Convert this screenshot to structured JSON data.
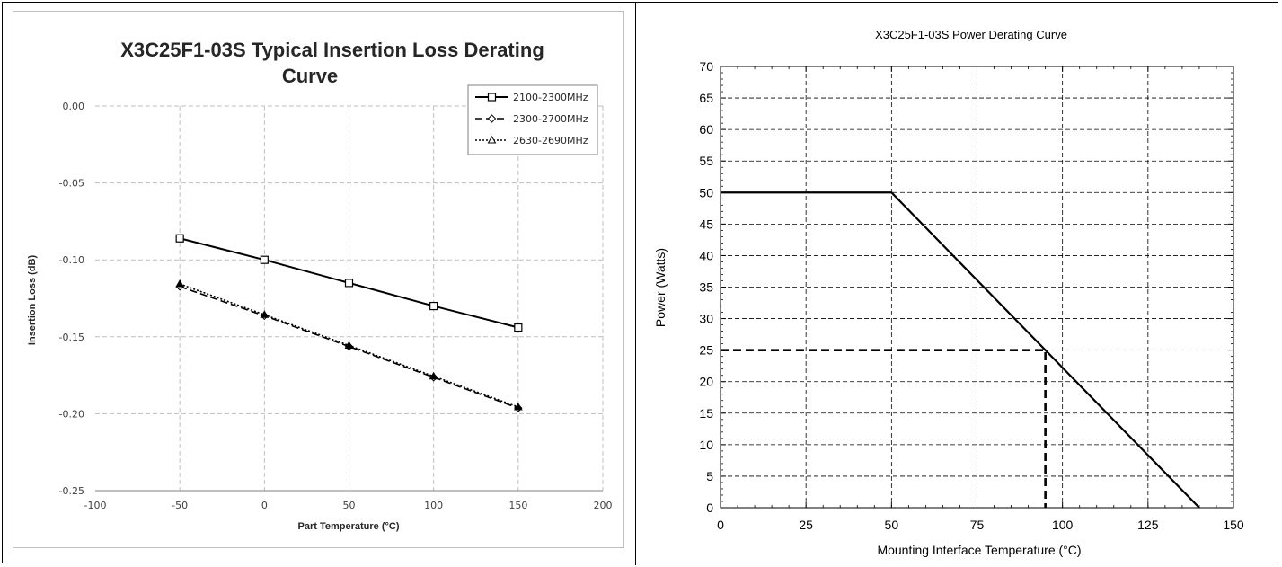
{
  "chart_data": [
    {
      "type": "line",
      "title_line1": "X3C25F1-03S Typical Insertion Loss Derating",
      "title_line2": "Curve",
      "xlabel": "Part Temperature (°C)",
      "ylabel": "Insertion Loss (dB)",
      "xlim": [
        -100,
        200
      ],
      "ylim": [
        -0.25,
        0.0
      ],
      "xticks": [
        -100,
        -50,
        0,
        50,
        100,
        150,
        200
      ],
      "xtick_labels": [
        "-100",
        "-50",
        "0",
        "50",
        "100",
        "150",
        "200"
      ],
      "yticks": [
        0.0,
        -0.05,
        -0.1,
        -0.15,
        -0.2,
        -0.25
      ],
      "ytick_labels": [
        "0.00",
        "-0.05",
        "-0.10",
        "-0.15",
        "-0.20",
        "-0.25"
      ],
      "grid": true,
      "legend_position": "top-right",
      "x": [
        -50,
        0,
        50,
        100,
        150
      ],
      "series": [
        {
          "name": "2100-2300MHz",
          "values": [
            -0.086,
            -0.1,
            -0.115,
            -0.13,
            -0.144
          ],
          "marker": "square",
          "dash": "solid"
        },
        {
          "name": "2300-2700MHz",
          "values": [
            -0.117,
            -0.136,
            -0.156,
            -0.176,
            -0.196
          ],
          "marker": "diamond",
          "dash": "dashed"
        },
        {
          "name": "2630-2690MHz",
          "values": [
            -0.116,
            -0.136,
            -0.156,
            -0.176,
            -0.196
          ],
          "marker": "triangle",
          "dash": "dotted"
        }
      ],
      "colors": {
        "line": "#000000",
        "grid": "#bfbfbf",
        "text": "#404040"
      }
    },
    {
      "type": "line",
      "title": "X3C25F1-03S Power Derating Curve",
      "xlabel": "Mounting Interface Temperature (°C)",
      "ylabel": "Power (Watts)",
      "xlim": [
        0,
        150
      ],
      "ylim": [
        0,
        70
      ],
      "xticks": [
        0,
        25,
        50,
        75,
        100,
        125,
        150
      ],
      "xtick_labels": [
        "0",
        "25",
        "50",
        "75",
        "100",
        "125",
        "150"
      ],
      "yticks": [
        0,
        5,
        10,
        15,
        20,
        25,
        30,
        35,
        40,
        45,
        50,
        55,
        60,
        65,
        70
      ],
      "ytick_labels": [
        "0",
        "5",
        "10",
        "15",
        "20",
        "25",
        "30",
        "35",
        "40",
        "45",
        "50",
        "55",
        "60",
        "65",
        "70"
      ],
      "grid": true,
      "series": [
        {
          "points": [
            [
              0,
              50
            ],
            [
              50,
              50
            ],
            [
              140,
              0
            ]
          ],
          "dash": "solid"
        },
        {
          "points": [
            [
              0,
              25
            ],
            [
              95,
              25
            ],
            [
              95,
              0
            ]
          ],
          "dash": "dashed"
        }
      ],
      "colors": {
        "line": "#000000",
        "grid": "#000000"
      }
    }
  ]
}
